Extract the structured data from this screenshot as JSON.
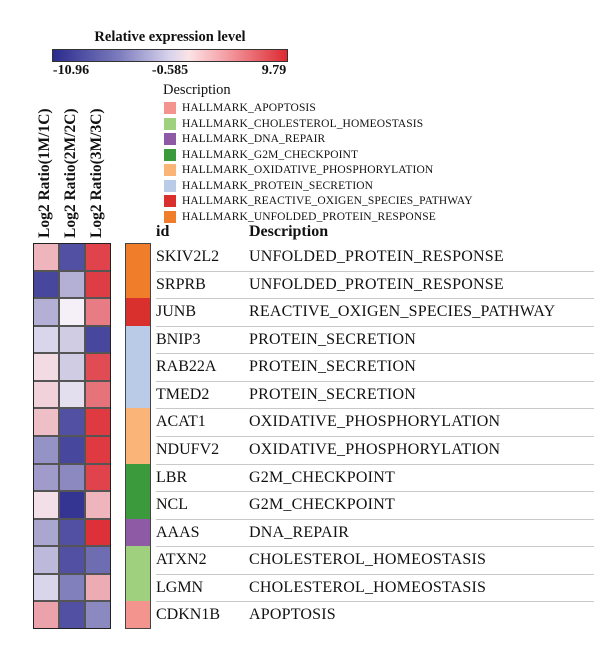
{
  "chart_data": {
    "type": "heatmap",
    "colorbar": {
      "title": "Relative expression level",
      "min_label": "-10.96",
      "mid_label": "-0.585",
      "max_label": "9.79",
      "low_color": "#2b2b8e",
      "high_color": "#dd2a32"
    },
    "columns": [
      "Log2 Ratio(1M/1C)",
      "Log2 Ratio(2M/2C)",
      "Log2 Ratio(3M/3C)"
    ],
    "legend": {
      "title": "Description",
      "items": [
        {
          "label": "HALLMARK_APOPTOSIS",
          "color": "#f4948e"
        },
        {
          "label": "HALLMARK_CHOLESTEROL_HOMEOSTASIS",
          "color": "#9ed07e"
        },
        {
          "label": "HALLMARK_DNA_REPAIR",
          "color": "#8e5aa6"
        },
        {
          "label": "HALLMARK_G2M_CHECKPOINT",
          "color": "#3a9a3c"
        },
        {
          "label": "HALLMARK_OXIDATIVE_PHOSPHORYLATION",
          "color": "#fbb478"
        },
        {
          "label": "HALLMARK_PROTEIN_SECRETION",
          "color": "#b9cbe6"
        },
        {
          "label": "HALLMARK_REACTIVE_OXIGEN_SPECIES_PATHWAY",
          "color": "#d9302e"
        },
        {
          "label": "HALLMARK_UNFOLDED_PROTEIN_RESPONSE",
          "color": "#f07d2a"
        }
      ]
    },
    "table_headers": {
      "id": "id",
      "description": "Description"
    },
    "rows": [
      {
        "id": "SKIV2L2",
        "description": "UNFOLDED_PROTEIN_RESPONSE",
        "category_color": "#f07d2a",
        "values": [
          2.5,
          -9.0,
          8.5
        ]
      },
      {
        "id": "SRPRB",
        "description": "UNFOLDED_PROTEIN_RESPONSE",
        "category_color": "#f07d2a",
        "values": [
          -9.5,
          -4.0,
          8.8
        ]
      },
      {
        "id": "JUNB",
        "description": "REACTIVE_OXIGEN_SPECIES_PATHWAY",
        "category_color": "#d9302e",
        "values": [
          -4.0,
          -0.6,
          5.5
        ]
      },
      {
        "id": "BNIP3",
        "description": "PROTEIN_SECRETION",
        "category_color": "#b9cbe6",
        "values": [
          -2.0,
          -2.5,
          -9.5
        ]
      },
      {
        "id": "RAB22A",
        "description": "PROTEIN_SECRETION",
        "category_color": "#b9cbe6",
        "values": [
          0.5,
          -2.5,
          8.0
        ]
      },
      {
        "id": "TMED2",
        "description": "PROTEIN_SECRETION",
        "category_color": "#b9cbe6",
        "values": [
          1.0,
          -1.5,
          6.0
        ]
      },
      {
        "id": "ACAT1",
        "description": "OXIDATIVE_PHOSPHORYLATION",
        "category_color": "#fbb478",
        "values": [
          2.0,
          -9.0,
          9.0
        ]
      },
      {
        "id": "NDUFV2",
        "description": "OXIDATIVE_PHOSPHORYLATION",
        "category_color": "#fbb478",
        "values": [
          -5.5,
          -9.5,
          9.0
        ]
      },
      {
        "id": "LBR",
        "description": "G2M_CHECKPOINT",
        "category_color": "#3a9a3c",
        "values": [
          -5.0,
          -6.0,
          8.5
        ]
      },
      {
        "id": "NCL",
        "description": "G2M_CHECKPOINT",
        "category_color": "#3a9a3c",
        "values": [
          0.3,
          -10.5,
          2.5
        ]
      },
      {
        "id": "AAAS",
        "description": "DNA_REPAIR",
        "category_color": "#8e5aa6",
        "values": [
          -4.5,
          -9.0,
          9.5
        ]
      },
      {
        "id": "ATXN2",
        "description": "CHOLESTEROL_HOMEOSTASIS",
        "category_color": "#9ed07e",
        "values": [
          -3.5,
          -9.0,
          -7.5
        ]
      },
      {
        "id": "LGMN",
        "description": "CHOLESTEROL_HOMEOSTASIS",
        "category_color": "#9ed07e",
        "values": [
          -2.0,
          -6.5,
          3.0
        ]
      },
      {
        "id": "CDKN1B",
        "description": "APOPTOSIS",
        "category_color": "#f4948e",
        "values": [
          3.5,
          -9.0,
          -6.0
        ]
      }
    ]
  }
}
